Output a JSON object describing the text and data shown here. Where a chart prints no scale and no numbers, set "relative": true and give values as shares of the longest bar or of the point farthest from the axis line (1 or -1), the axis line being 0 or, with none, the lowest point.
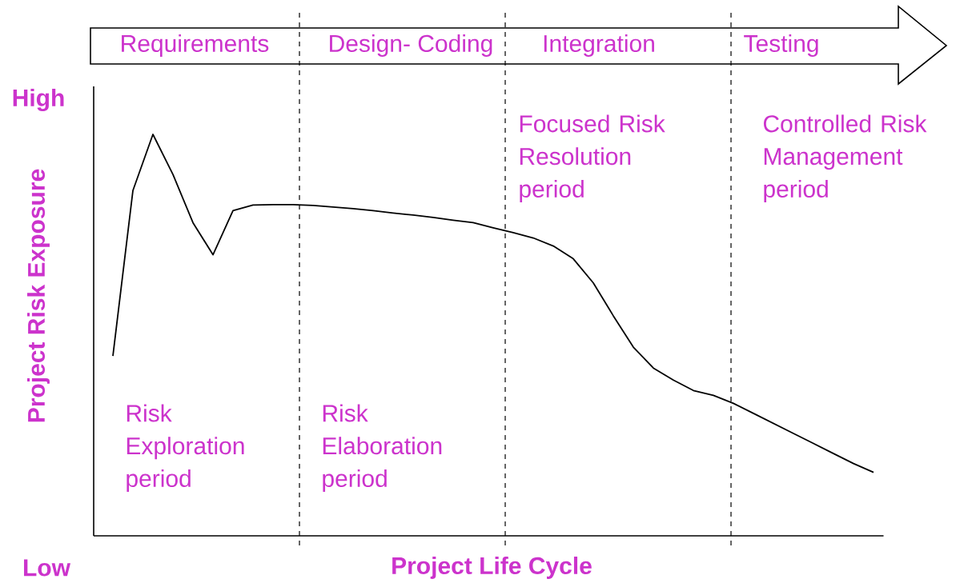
{
  "chart_data": {
    "type": "line",
    "relative": true,
    "xlabel": "Project Life Cycle",
    "ylabel": "Project Risk Exposure",
    "categories": [
      null,
      null,
      null,
      null,
      null,
      null,
      null,
      null,
      null,
      null,
      null,
      null,
      null,
      null,
      null,
      null,
      null,
      null,
      null,
      null,
      null,
      null,
      null,
      null,
      null,
      null,
      null,
      null,
      null,
      null,
      null,
      null,
      null,
      null,
      null,
      null,
      null,
      null,
      null
    ],
    "series": [
      {
        "color": "#000000",
        "values": [
          0.448,
          0.86,
          1,
          0.9,
          0.78,
          0.7,
          0.81,
          0.824,
          0.825,
          0.825,
          0.823,
          0.819,
          0.815,
          0.81,
          0.804,
          0.799,
          0.793,
          0.786,
          0.78,
          0.767,
          0.755,
          0.742,
          0.722,
          0.69,
          0.63,
          0.548,
          0.47,
          0.418,
          0.388,
          0.362,
          0.35,
          0.33,
          0.305,
          0.28,
          0.255,
          0.23,
          0.205,
          0.18,
          0.158
        ]
      }
    ],
    "annotations": [
      "High",
      "Low",
      "Requirements",
      "Design- Coding",
      "Integration",
      "Testing",
      "Risk Exploration period",
      "Risk Elaboration period",
      "Focused Risk Resolution period",
      "Controlled Risk Management period"
    ]
  }
}
